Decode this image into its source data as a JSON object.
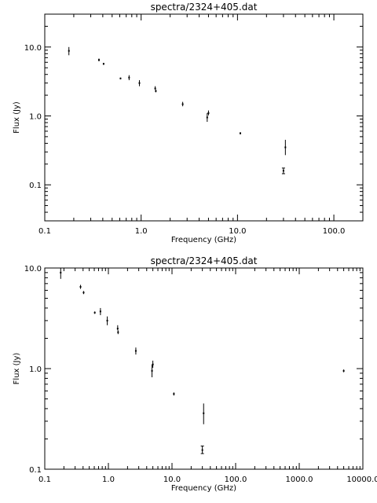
{
  "chart_data": [
    {
      "type": "scatter",
      "title": "spectra/2324+405.dat",
      "xlabel": "Frequency (GHz)",
      "ylabel": "Flux (Jy)",
      "xscale": "log",
      "yscale": "log",
      "xlim": [
        0.1,
        200
      ],
      "ylim": [
        0.03,
        30
      ],
      "xticks": [
        0.1,
        1,
        10,
        100
      ],
      "xtick_labels": [
        "0.1",
        "1.0",
        "10.0",
        "100.0"
      ],
      "yticks": [
        0.1,
        1,
        10
      ],
      "ytick_labels": [
        "0.1",
        "1.0",
        "10.0"
      ],
      "grid": false,
      "legend": "none",
      "points": [
        {
          "x": 0.178,
          "y": 8.8,
          "ylo": 7.6,
          "yhi": 10.0
        },
        {
          "x": 0.365,
          "y": 6.5,
          "ylo": 6.2,
          "yhi": 6.8
        },
        {
          "x": 0.408,
          "y": 5.7,
          "ylo": 5.5,
          "yhi": 5.9
        },
        {
          "x": 0.611,
          "y": 3.5,
          "ylo": 3.4,
          "yhi": 3.6
        },
        {
          "x": 0.75,
          "y": 3.6,
          "ylo": 3.3,
          "yhi": 3.9
        },
        {
          "x": 0.96,
          "y": 3.0,
          "ylo": 2.7,
          "yhi": 3.3
        },
        {
          "x": 1.4,
          "y": 2.5,
          "ylo": 2.4,
          "yhi": 2.7
        },
        {
          "x": 1.42,
          "y": 2.3,
          "ylo": 2.2,
          "yhi": 2.4
        },
        {
          "x": 2.7,
          "y": 1.48,
          "ylo": 1.38,
          "yhi": 1.6
        },
        {
          "x": 4.85,
          "y": 0.95,
          "ylo": 0.82,
          "yhi": 1.1
        },
        {
          "x": 5.0,
          "y": 1.1,
          "ylo": 1.02,
          "yhi": 1.2
        },
        {
          "x": 10.7,
          "y": 0.56,
          "ylo": 0.54,
          "yhi": 0.58
        },
        {
          "x": 31.4,
          "y": 0.35,
          "ylo": 0.27,
          "yhi": 0.45
        },
        {
          "x": 30.0,
          "y": 0.16,
          "ylo": 0.145,
          "yhi": 0.175
        }
      ]
    },
    {
      "type": "scatter",
      "title": "spectra/2324+405.dat",
      "xlabel": "Frequency (GHz)",
      "ylabel": "Flux (Jy)",
      "xscale": "log",
      "yscale": "log",
      "xlim": [
        0.1,
        10000
      ],
      "ylim": [
        0.1,
        10
      ],
      "xticks": [
        0.1,
        1,
        10,
        100,
        1000,
        10000
      ],
      "xtick_labels": [
        "0.1",
        "1.0",
        "10.0",
        "100.0",
        "1000.0",
        "10000.0"
      ],
      "yticks": [
        0.1,
        1,
        10
      ],
      "ytick_labels": [
        "0.1",
        "1.0",
        "10.0"
      ],
      "grid": false,
      "legend": "none",
      "points": [
        {
          "x": 0.178,
          "y": 9.0,
          "ylo": 7.8,
          "yhi": 10.0
        },
        {
          "x": 0.365,
          "y": 6.5,
          "ylo": 6.2,
          "yhi": 6.8
        },
        {
          "x": 0.408,
          "y": 5.7,
          "ylo": 5.5,
          "yhi": 5.9
        },
        {
          "x": 0.611,
          "y": 3.6,
          "ylo": 3.5,
          "yhi": 3.7
        },
        {
          "x": 0.75,
          "y": 3.7,
          "ylo": 3.4,
          "yhi": 4.0
        },
        {
          "x": 0.96,
          "y": 3.0,
          "ylo": 2.7,
          "yhi": 3.3
        },
        {
          "x": 1.4,
          "y": 2.5,
          "ylo": 2.4,
          "yhi": 2.7
        },
        {
          "x": 1.42,
          "y": 2.3,
          "ylo": 2.2,
          "yhi": 2.4
        },
        {
          "x": 2.7,
          "y": 1.5,
          "ylo": 1.38,
          "yhi": 1.62
        },
        {
          "x": 4.85,
          "y": 0.95,
          "ylo": 0.82,
          "yhi": 1.1
        },
        {
          "x": 5.0,
          "y": 1.1,
          "ylo": 1.02,
          "yhi": 1.2
        },
        {
          "x": 10.7,
          "y": 0.56,
          "ylo": 0.54,
          "yhi": 0.58
        },
        {
          "x": 31.4,
          "y": 0.36,
          "ylo": 0.28,
          "yhi": 0.45
        },
        {
          "x": 30.0,
          "y": 0.155,
          "ylo": 0.143,
          "yhi": 0.17
        },
        {
          "x": 5000.0,
          "y": 0.95,
          "ylo": 0.92,
          "yhi": 0.98
        }
      ]
    }
  ]
}
